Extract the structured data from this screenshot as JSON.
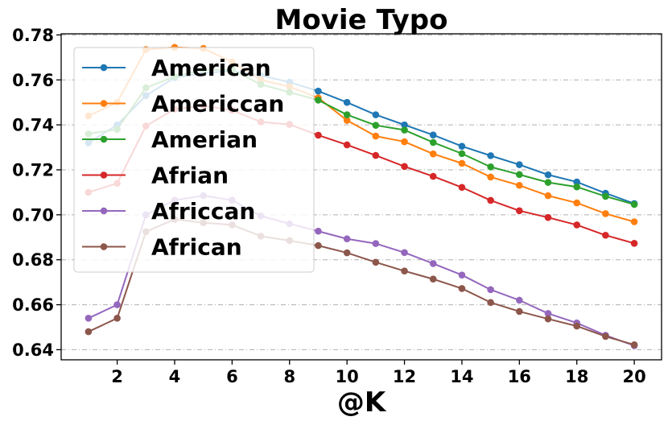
{
  "chart_data": {
    "type": "line",
    "title": "Movie Typo",
    "xlabel": "@K",
    "ylabel": "",
    "x": [
      1,
      2,
      3,
      4,
      5,
      6,
      7,
      8,
      9,
      10,
      11,
      12,
      13,
      14,
      15,
      16,
      17,
      18,
      19,
      20
    ],
    "xticks": [
      2,
      4,
      6,
      8,
      10,
      12,
      14,
      16,
      18,
      20
    ],
    "xtick_labels": [
      "2",
      "4",
      "6",
      "8",
      "10",
      "12",
      "14",
      "16",
      "18",
      "20"
    ],
    "yticks": [
      0.64,
      0.66,
      0.68,
      0.7,
      0.72,
      0.74,
      0.76,
      0.78
    ],
    "ytick_labels": [
      "0.64",
      "0.66",
      "0.68",
      "0.70",
      "0.72",
      "0.74",
      "0.76",
      "0.78"
    ],
    "xlim": [
      0.05,
      20.95
    ],
    "ylim": [
      0.6355,
      0.7805
    ],
    "grid": true,
    "legend_position": "upper-left",
    "series": [
      {
        "name": "American",
        "color": "#1f77b4",
        "values": [
          0.732,
          0.74,
          0.753,
          0.761,
          0.763,
          0.764,
          0.762,
          0.759,
          0.755,
          0.75,
          0.7445,
          0.74,
          0.7355,
          0.7305,
          0.7263,
          0.7223,
          0.7178,
          0.7146,
          0.7096,
          0.705
        ]
      },
      {
        "name": "Americcan",
        "color": "#ff7f0e",
        "values": [
          0.744,
          0.75,
          0.7735,
          0.7745,
          0.774,
          0.768,
          0.76,
          0.757,
          0.752,
          0.742,
          0.735,
          0.7325,
          0.7271,
          0.7229,
          0.7168,
          0.7131,
          0.7085,
          0.7053,
          0.7005,
          0.6969
        ]
      },
      {
        "name": "Amerian",
        "color": "#2ca02c",
        "values": [
          0.736,
          0.738,
          0.7565,
          0.7615,
          0.7645,
          0.7645,
          0.758,
          0.7545,
          0.751,
          0.7445,
          0.7398,
          0.7377,
          0.7322,
          0.7272,
          0.7213,
          0.7179,
          0.7144,
          0.7124,
          0.7082,
          0.7046
        ]
      },
      {
        "name": "Afrian",
        "color": "#d62728",
        "values": [
          0.71,
          0.714,
          0.7395,
          0.747,
          0.7485,
          0.7465,
          0.7413,
          0.7402,
          0.7354,
          0.7311,
          0.7264,
          0.7215,
          0.7171,
          0.7122,
          0.7064,
          0.7018,
          0.6988,
          0.6955,
          0.6909,
          0.6873
        ]
      },
      {
        "name": "Africcan",
        "color": "#9467bd",
        "values": [
          0.654,
          0.66,
          0.7,
          0.7065,
          0.7085,
          0.7065,
          0.6995,
          0.696,
          0.6927,
          0.6893,
          0.6872,
          0.6832,
          0.6783,
          0.6732,
          0.6667,
          0.662,
          0.6561,
          0.6519,
          0.6464,
          0.6418
        ]
      },
      {
        "name": "African",
        "color": "#8c564b",
        "values": [
          0.648,
          0.654,
          0.6925,
          0.698,
          0.6965,
          0.6955,
          0.6905,
          0.6885,
          0.6863,
          0.6831,
          0.6789,
          0.675,
          0.6714,
          0.6672,
          0.661,
          0.657,
          0.6537,
          0.6505,
          0.6459,
          0.6422
        ]
      }
    ]
  }
}
